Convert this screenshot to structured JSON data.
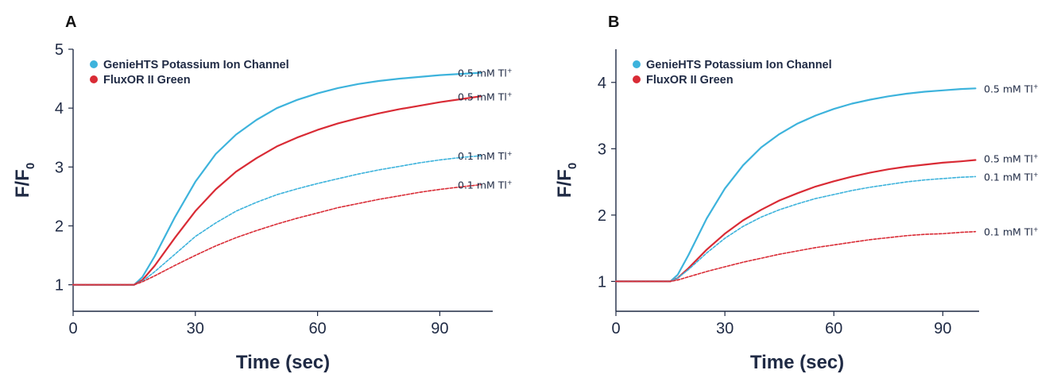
{
  "chart_data": [
    {
      "panel": "A",
      "type": "line",
      "xlabel": "Time (sec)",
      "ylabel": "F/F",
      "ylabel_sub": "0",
      "xlim": [
        0,
        103
      ],
      "ylim": [
        0.55,
        5
      ],
      "xticks": [
        0,
        30,
        60,
        90
      ],
      "yticks": [
        1,
        2,
        3,
        4,
        5
      ],
      "grid": false,
      "legend": {
        "position": "top-left",
        "entries": [
          {
            "label": "GenieHTS Potassium Ion Channel",
            "color": "#3db3dc"
          },
          {
            "label": "FluxOR II Green",
            "color": "#d92b35"
          }
        ]
      },
      "series": [
        {
          "name": "GenieHTS Potassium Ion Channel",
          "end_label": "0.5 mM Tl",
          "end_label_sup": "+",
          "color": "#3db3dc",
          "style": "solid",
          "x": [
            0,
            10,
            15,
            17,
            20,
            25,
            30,
            35,
            40,
            45,
            50,
            55,
            60,
            65,
            70,
            75,
            80,
            85,
            90,
            95,
            100
          ],
          "y": [
            1.0,
            1.0,
            1.0,
            1.13,
            1.48,
            2.15,
            2.75,
            3.22,
            3.55,
            3.8,
            4.0,
            4.14,
            4.25,
            4.34,
            4.41,
            4.46,
            4.5,
            4.53,
            4.56,
            4.58,
            4.6
          ]
        },
        {
          "name": "FluxOR II Green",
          "end_label": "0.5 mM Tl",
          "end_label_sup": "+",
          "color": "#d92b35",
          "style": "solid",
          "x": [
            0,
            10,
            15,
            17,
            20,
            25,
            30,
            35,
            40,
            45,
            50,
            55,
            60,
            65,
            70,
            75,
            80,
            85,
            90,
            95,
            100
          ],
          "y": [
            1.0,
            1.0,
            1.0,
            1.08,
            1.32,
            1.8,
            2.25,
            2.62,
            2.92,
            3.15,
            3.35,
            3.5,
            3.63,
            3.74,
            3.83,
            3.91,
            3.98,
            4.04,
            4.1,
            4.15,
            4.2
          ]
        },
        {
          "name": "GenieHTS Potassium Ion Channel",
          "end_label": "0.1 mM Tl",
          "end_label_sup": "+",
          "color": "#3db3dc",
          "style": "dashed",
          "x": [
            0,
            10,
            15,
            17,
            20,
            25,
            30,
            35,
            40,
            45,
            50,
            55,
            60,
            65,
            70,
            75,
            80,
            85,
            90,
            95,
            100
          ],
          "y": [
            1.0,
            1.0,
            1.0,
            1.06,
            1.22,
            1.52,
            1.82,
            2.05,
            2.25,
            2.4,
            2.53,
            2.63,
            2.72,
            2.8,
            2.88,
            2.95,
            3.01,
            3.07,
            3.12,
            3.16,
            3.19
          ]
        },
        {
          "name": "FluxOR II Green",
          "end_label": "0.1 mM Tl",
          "end_label_sup": "+",
          "color": "#d92b35",
          "style": "dashed",
          "x": [
            0,
            10,
            15,
            17,
            20,
            25,
            30,
            35,
            40,
            45,
            50,
            55,
            60,
            65,
            70,
            75,
            80,
            85,
            90,
            95,
            100
          ],
          "y": [
            1.0,
            1.0,
            1.0,
            1.05,
            1.15,
            1.33,
            1.5,
            1.66,
            1.8,
            1.92,
            2.03,
            2.13,
            2.22,
            2.31,
            2.38,
            2.45,
            2.51,
            2.57,
            2.62,
            2.66,
            2.7
          ]
        }
      ]
    },
    {
      "panel": "B",
      "type": "line",
      "xlabel": "Time (sec)",
      "ylabel": "F/F",
      "ylabel_sub": "0",
      "xlim": [
        0,
        100
      ],
      "ylim": [
        0.55,
        4.5
      ],
      "xticks": [
        0,
        30,
        60,
        90
      ],
      "yticks": [
        1,
        2,
        3,
        4
      ],
      "grid": false,
      "legend": {
        "position": "top-left",
        "entries": [
          {
            "label": "GenieHTS Potassium Ion Channel",
            "color": "#3db3dc"
          },
          {
            "label": "FluxOR II Green",
            "color": "#d92b35"
          }
        ]
      },
      "series": [
        {
          "name": "GenieHTS Potassium Ion Channel",
          "end_label": "0.5 mM Tl",
          "end_label_sup": "+",
          "color": "#3db3dc",
          "style": "solid",
          "x": [
            0,
            10,
            15,
            17,
            20,
            25,
            30,
            35,
            40,
            45,
            50,
            55,
            60,
            65,
            70,
            75,
            80,
            85,
            90,
            95,
            99
          ],
          "y": [
            1.0,
            1.0,
            1.0,
            1.1,
            1.4,
            1.95,
            2.4,
            2.75,
            3.02,
            3.22,
            3.38,
            3.5,
            3.6,
            3.68,
            3.74,
            3.79,
            3.83,
            3.86,
            3.88,
            3.9,
            3.91
          ]
        },
        {
          "name": "FluxOR II Green",
          "end_label": "0.5 mM Tl",
          "end_label_sup": "+",
          "color": "#d92b35",
          "style": "solid",
          "x": [
            0,
            10,
            15,
            17,
            20,
            25,
            30,
            35,
            40,
            45,
            50,
            55,
            60,
            65,
            70,
            75,
            80,
            85,
            90,
            95,
            99
          ],
          "y": [
            1.0,
            1.0,
            1.0,
            1.05,
            1.2,
            1.48,
            1.72,
            1.92,
            2.08,
            2.22,
            2.33,
            2.43,
            2.51,
            2.58,
            2.64,
            2.69,
            2.73,
            2.76,
            2.79,
            2.81,
            2.83
          ]
        },
        {
          "name": "GenieHTS Potassium Ion Channel",
          "end_label": "0.1 mM Tl",
          "end_label_sup": "+",
          "color": "#3db3dc",
          "style": "dashed",
          "x": [
            0,
            10,
            15,
            17,
            20,
            25,
            30,
            35,
            40,
            45,
            50,
            55,
            60,
            65,
            70,
            75,
            80,
            85,
            90,
            95,
            99
          ],
          "y": [
            1.0,
            1.0,
            1.0,
            1.05,
            1.18,
            1.43,
            1.65,
            1.83,
            1.97,
            2.08,
            2.17,
            2.25,
            2.31,
            2.37,
            2.42,
            2.46,
            2.5,
            2.53,
            2.55,
            2.57,
            2.58
          ]
        },
        {
          "name": "FluxOR II Green",
          "end_label": "0.1 mM Tl",
          "end_label_sup": "+",
          "color": "#d92b35",
          "style": "dashed",
          "x": [
            0,
            10,
            15,
            17,
            20,
            25,
            30,
            35,
            40,
            45,
            50,
            55,
            60,
            65,
            70,
            75,
            80,
            85,
            90,
            95,
            99
          ],
          "y": [
            1.0,
            1.0,
            1.0,
            1.02,
            1.07,
            1.15,
            1.22,
            1.29,
            1.35,
            1.41,
            1.46,
            1.51,
            1.55,
            1.59,
            1.63,
            1.66,
            1.69,
            1.71,
            1.72,
            1.74,
            1.75
          ]
        }
      ]
    }
  ]
}
